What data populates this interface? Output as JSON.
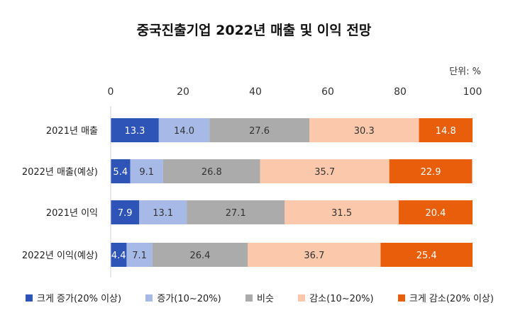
{
  "chart_data": {
    "type": "bar",
    "orientation": "horizontal",
    "stacked": true,
    "title": "중국진출기업 2022년 매출 및 이익 전망",
    "unit": "단위:  %",
    "categories": [
      "2021년 매출",
      "2022년 매출(예상)",
      "2021년 이익",
      "2022년 이익(예상)"
    ],
    "series": [
      {
        "name": "크게 증가(20% 이상)",
        "color": "#2E54B8",
        "label_color": "#ffffff",
        "values": [
          13.3,
          5.4,
          7.9,
          4.4
        ]
      },
      {
        "name": "증가(10~20%)",
        "color": "#A7B9E6",
        "label_color": "#333333",
        "values": [
          14.0,
          9.1,
          13.1,
          7.1
        ]
      },
      {
        "name": "비슷",
        "color": "#ABABAB",
        "label_color": "#333333",
        "values": [
          27.6,
          26.8,
          27.1,
          26.4
        ]
      },
      {
        "name": "감소(10~20%)",
        "color": "#FBC8AB",
        "label_color": "#333333",
        "values": [
          30.3,
          35.7,
          31.5,
          36.7
        ]
      },
      {
        "name": "크게 감소(20% 이상)",
        "color": "#E85E0B",
        "label_color": "#ffffff",
        "values": [
          14.8,
          22.9,
          20.4,
          25.4
        ]
      }
    ],
    "xlim": [
      0,
      100
    ],
    "xticks": [
      0,
      20,
      40,
      60,
      80,
      100
    ],
    "grid": false,
    "legend_position": "bottom"
  }
}
